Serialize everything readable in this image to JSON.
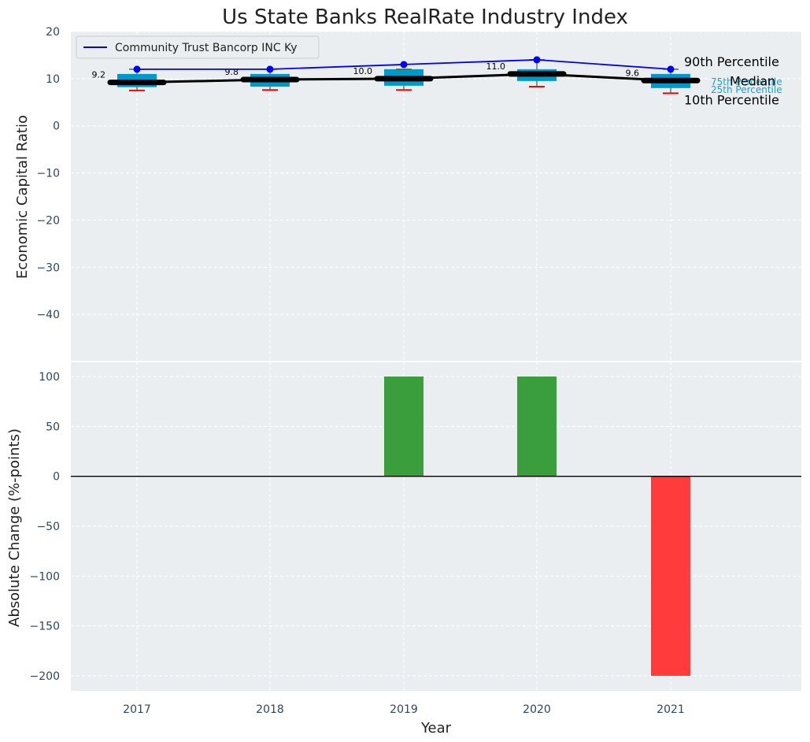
{
  "chart_data": [
    {
      "type": "box",
      "title": "Us State Banks RealRate Industry Index",
      "xlabel": "",
      "ylabel": "Economic Capital Ratio",
      "ylim": [
        -50,
        20
      ],
      "yticks": [
        20,
        10,
        0,
        -10,
        -20,
        -30,
        -40
      ],
      "ytick_labels": [
        "20",
        "10",
        "0",
        "−10",
        "−20",
        "−30",
        "−40"
      ],
      "categories": [
        "2017",
        "2018",
        "2019",
        "2020",
        "2021"
      ],
      "grid": true,
      "legend_position": "top-left",
      "distribution": [
        {
          "year": "2017",
          "p10": 7.5,
          "p25": 8.2,
          "median": 9.2,
          "p75": 11.0,
          "p90": 12.0
        },
        {
          "year": "2018",
          "p10": 7.6,
          "p25": 8.3,
          "median": 9.8,
          "p75": 11.0,
          "p90": 12.0
        },
        {
          "year": "2019",
          "p10": 7.6,
          "p25": 8.5,
          "median": 10.0,
          "p75": 12.0,
          "p90": 12.0
        },
        {
          "year": "2020",
          "p10": 8.3,
          "p25": 9.5,
          "median": 11.0,
          "p75": 12.0,
          "p90": 14.0
        },
        {
          "year": "2021",
          "p10": 6.9,
          "p25": 8.0,
          "median": 9.6,
          "p75": 11.0,
          "p90": 12.0
        }
      ],
      "median_labels": [
        "9.2",
        "9.8",
        "10.0",
        "11.0",
        "9.6"
      ],
      "series": [
        {
          "name": "Community Trust Bancorp INC Ky",
          "values": [
            12,
            12,
            13,
            14,
            12
          ],
          "color": "#0000ff"
        },
        {
          "name": "",
          "values": [
            9.2,
            9.8,
            10.0,
            11.0,
            9.6
          ],
          "color": "#000000"
        }
      ],
      "annotations": {
        "p90": "90th Percentile",
        "p75": "75th Percentile",
        "median": "Median",
        "p25": "25th Percentile",
        "p10": "10th Percentile"
      }
    },
    {
      "type": "bar",
      "xlabel": "Year",
      "ylabel": "Absolute Change (%-points)",
      "ylim": [
        -215,
        115
      ],
      "yticks": [
        100,
        50,
        0,
        -50,
        -100,
        -150,
        -200
      ],
      "ytick_labels": [
        "100",
        "50",
        "0",
        "−50",
        "−100",
        "−150",
        "−200"
      ],
      "categories": [
        "2017",
        "2018",
        "2019",
        "2020",
        "2021"
      ],
      "values": [
        0,
        0,
        100,
        100,
        -200
      ],
      "grid": true
    }
  ],
  "colors": {
    "panel_bg": "#eaeef0",
    "grid": "#ffffff",
    "box": "#0099cc",
    "whisker": "#ff0000",
    "median_line": "#000000",
    "company_line": "#0000ff",
    "positive_bar": "#3a9e3c",
    "negative_bar": "#ff3b3b",
    "tick_text": "#2f4560",
    "percentile_text_side": "#1aa3cc"
  }
}
